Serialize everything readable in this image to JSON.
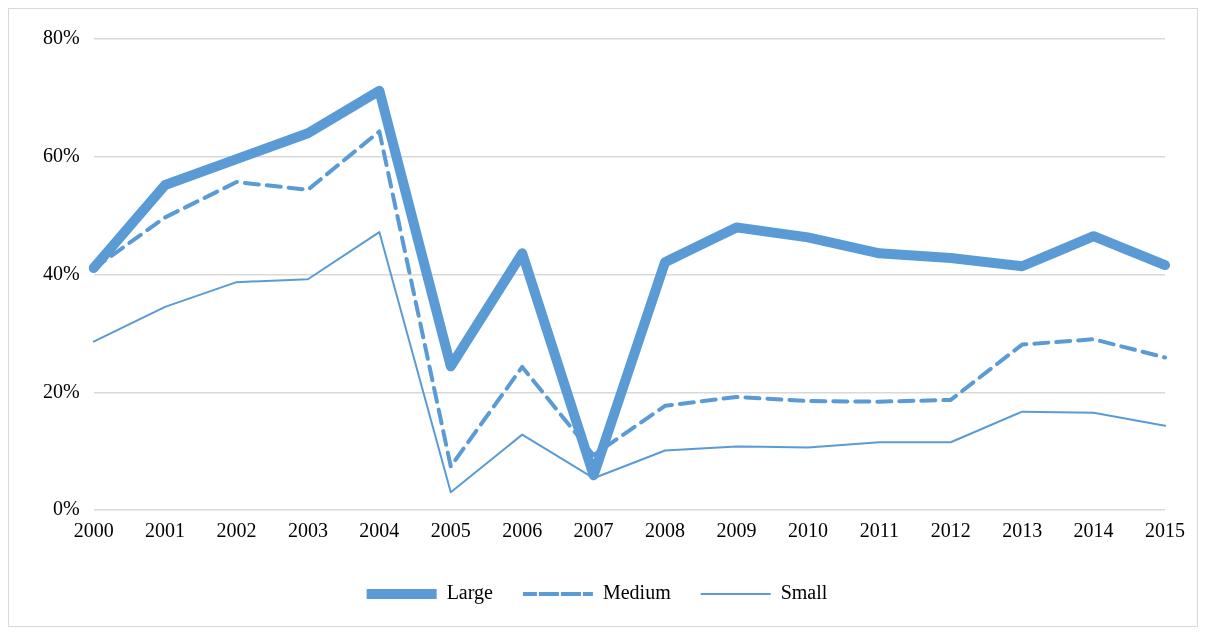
{
  "chart_data": {
    "type": "line",
    "categories": [
      "2000",
      "2001",
      "2002",
      "2003",
      "2004",
      "2005",
      "2006",
      "2007",
      "2008",
      "2009",
      "2010",
      "2011",
      "2012",
      "2013",
      "2014",
      "2015"
    ],
    "series": [
      {
        "name": "Large",
        "color": "#5b9bd5",
        "line_style": "solid",
        "values": [
          41.1,
          55.2,
          59.6,
          64,
          71.2,
          24.4,
          43.6,
          5.9,
          42.1,
          48,
          46.3,
          43.6,
          42.8,
          41.4,
          46.5,
          41.6
        ]
      },
      {
        "name": "Medium",
        "color": "#5b9bd5",
        "line_style": "dashed",
        "values": [
          41,
          49.7,
          55.7,
          54.4,
          64.3,
          7.4,
          24.3,
          9.3,
          17.7,
          19.2,
          18.5,
          18.4,
          18.7,
          28.1,
          29,
          25.9
        ]
      },
      {
        "name": "Small",
        "color": "#5b9bd5",
        "line_style": "solid",
        "values": [
          28.6,
          34.5,
          38.7,
          39.2,
          47.2,
          3,
          12.8,
          5.4,
          10.1,
          10.8,
          10.6,
          11.5,
          11.5,
          16.7,
          16.5,
          14.3
        ]
      }
    ],
    "ylim": [
      0,
      80
    ],
    "yticks": [
      {
        "value": 0,
        "label": "0%"
      },
      {
        "value": 20,
        "label": "20%"
      },
      {
        "value": 40,
        "label": "40%"
      },
      {
        "value": 60,
        "label": "60%"
      },
      {
        "value": 80,
        "label": "80%"
      }
    ],
    "grid": "y",
    "legend": "bottom",
    "marker": "none"
  }
}
